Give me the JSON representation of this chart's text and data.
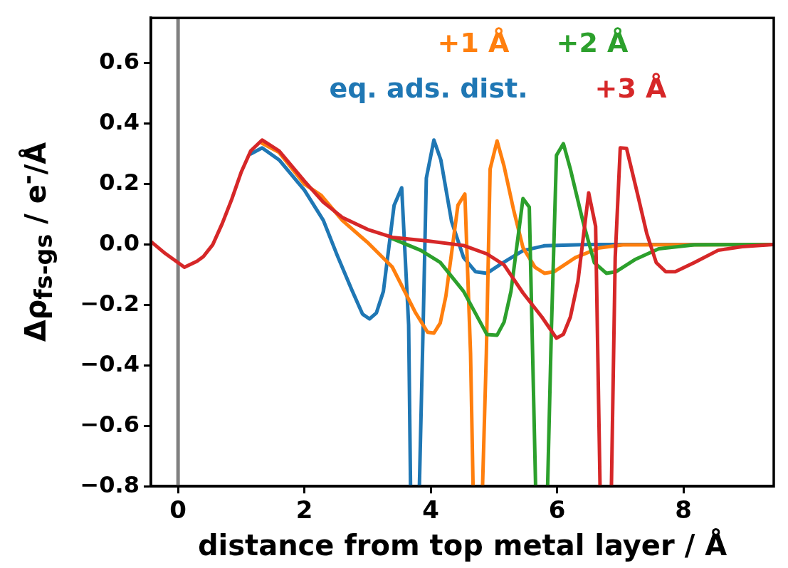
{
  "chart_data": {
    "type": "line",
    "xlabel": "distance from top metal layer / Å",
    "ylabel": "Δρ$_{fs-gs}$ / e$^{-}$/Å",
    "xlim": [
      -0.43,
      9.43
    ],
    "ylim": [
      -0.8,
      0.75
    ],
    "xticks": [
      0,
      2,
      4,
      6,
      8
    ],
    "yticks": [
      {
        "value": -0.8,
        "label": "−0.8"
      },
      {
        "value": -0.6,
        "label": "−0.6"
      },
      {
        "value": -0.4,
        "label": "−0.4"
      },
      {
        "value": -0.2,
        "label": "−0.2"
      },
      {
        "value": 0,
        "label": "0.0"
      },
      {
        "value": 0.2,
        "label": "0.2"
      },
      {
        "value": 0.4,
        "label": "0.4"
      },
      {
        "value": 0.6,
        "label": "0.6"
      }
    ],
    "grid": false,
    "legend": "top right",
    "marker": "none",
    "line_style": "solid",
    "ref_lines": [
      {
        "axis": "x",
        "value": 0,
        "color": "#808080"
      }
    ],
    "series": [
      {
        "name": "eq. ads. dist.",
        "color": "#1f77b4",
        "x": [
          1.15,
          1.33,
          1.6,
          2.0,
          2.3,
          2.52,
          2.75,
          2.92,
          3.03,
          3.14,
          3.25,
          3.42,
          3.54,
          3.65,
          3.68,
          3.75,
          3.82,
          3.88,
          3.93,
          4.05,
          4.16,
          4.33,
          4.52,
          4.71,
          4.89,
          5.12,
          5.46,
          5.8,
          6.5,
          9.43
        ],
        "values": [
          0.3,
          0.32,
          0.28,
          0.18,
          0.08,
          -0.036,
          -0.15,
          -0.23,
          -0.246,
          -0.226,
          -0.155,
          0.13,
          0.188,
          -0.265,
          -0.8,
          null,
          -0.8,
          -0.265,
          0.22,
          0.346,
          0.28,
          0.076,
          -0.043,
          -0.09,
          -0.095,
          -0.063,
          -0.02,
          -0.004,
          0.0,
          0.0
        ]
      },
      {
        "name": "+1 Å",
        "color": "#ff7f0e",
        "x": [
          1.33,
          1.6,
          2.0,
          2.26,
          2.6,
          3.01,
          3.39,
          3.76,
          3.95,
          4.05,
          4.15,
          4.24,
          4.43,
          4.54,
          4.63,
          4.67,
          4.75,
          4.82,
          4.88,
          4.94,
          5.05,
          5.16,
          5.31,
          5.46,
          5.65,
          5.8,
          5.95,
          6.29,
          6.67,
          7.04,
          9.43
        ],
        "values": [
          0.335,
          0.305,
          0.2,
          0.164,
          0.08,
          0.005,
          -0.074,
          -0.226,
          -0.29,
          -0.293,
          -0.26,
          -0.17,
          0.13,
          0.167,
          -0.36,
          -0.8,
          null,
          -0.8,
          -0.36,
          0.25,
          0.343,
          0.26,
          0.116,
          -0.01,
          -0.075,
          -0.095,
          -0.09,
          -0.043,
          -0.011,
          -0.001,
          0.0
        ]
      },
      {
        "name": "+2 Å",
        "color": "#2ca02c",
        "x": [
          3.39,
          3.84,
          4.15,
          4.52,
          4.89,
          5.05,
          5.16,
          5.27,
          5.46,
          5.56,
          5.66,
          5.75,
          5.85,
          5.91,
          5.99,
          6.1,
          6.21,
          6.41,
          6.59,
          6.78,
          6.93,
          7.23,
          7.61,
          8.17,
          9.43
        ],
        "values": [
          0.02,
          -0.019,
          -0.059,
          -0.155,
          -0.298,
          -0.3,
          -0.257,
          -0.155,
          0.152,
          0.124,
          -0.8,
          null,
          -0.8,
          -0.28,
          0.295,
          0.334,
          0.25,
          0.076,
          -0.06,
          -0.095,
          -0.09,
          -0.05,
          -0.014,
          -0.001,
          0.0
        ]
      },
      {
        "name": "+3 Å",
        "color": "#d62728",
        "x": [
          -0.43,
          -0.2,
          0.1,
          0.3,
          0.4,
          0.55,
          0.7,
          0.85,
          1.0,
          1.15,
          1.33,
          1.6,
          2.0,
          2.3,
          2.6,
          3.0,
          3.39,
          3.95,
          4.52,
          4.89,
          5.16,
          5.46,
          5.76,
          5.99,
          6.1,
          6.21,
          6.33,
          6.5,
          6.61,
          6.68,
          6.77,
          6.86,
          6.92,
          7.0,
          7.1,
          7.27,
          7.42,
          7.57,
          7.72,
          7.87,
          8.17,
          8.55,
          8.93,
          9.43
        ],
        "values": [
          0.01,
          -0.03,
          -0.075,
          -0.055,
          -0.04,
          0.0,
          0.07,
          0.15,
          0.24,
          0.31,
          0.346,
          0.31,
          0.21,
          0.14,
          0.09,
          0.05,
          0.024,
          0.012,
          -0.003,
          -0.031,
          -0.067,
          -0.16,
          -0.24,
          -0.31,
          -0.297,
          -0.24,
          -0.122,
          0.171,
          0.06,
          -0.8,
          null,
          -0.8,
          -0.043,
          0.32,
          0.318,
          0.17,
          0.036,
          -0.06,
          -0.09,
          -0.09,
          -0.06,
          -0.019,
          -0.007,
          0.0
        ]
      }
    ]
  }
}
